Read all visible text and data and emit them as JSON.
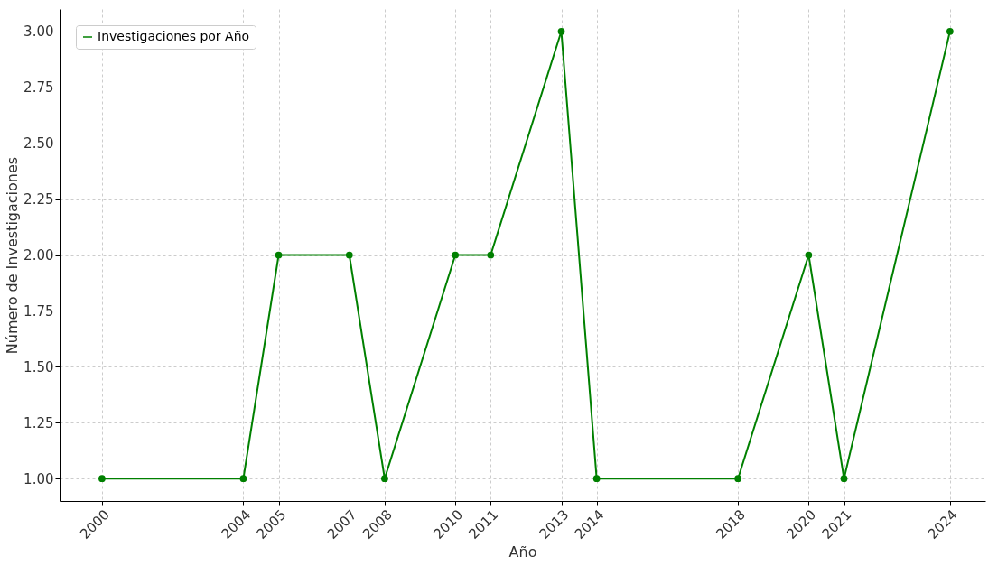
{
  "chart_data": {
    "type": "line",
    "xlabel": "Año",
    "ylabel": "Número de Investigaciones",
    "x": [
      2000,
      2004,
      2005,
      2007,
      2008,
      2010,
      2011,
      2013,
      2014,
      2018,
      2020,
      2021,
      2024
    ],
    "series": [
      {
        "name": "Investigaciones por Año",
        "color": "#008000",
        "values": [
          1,
          1,
          2,
          2,
          1,
          2,
          2,
          3,
          1,
          1,
          2,
          1,
          3
        ]
      }
    ],
    "xlim": [
      1998.8,
      2025
    ],
    "ylim": [
      0.9,
      3.1
    ],
    "xticks": [
      2000,
      2004,
      2005,
      2007,
      2008,
      2010,
      2011,
      2013,
      2014,
      2018,
      2020,
      2021,
      2024
    ],
    "yticks": [
      {
        "value": 1,
        "label": "1.00"
      },
      {
        "value": 1.25,
        "label": "1.25"
      },
      {
        "value": 1.5,
        "label": "1.50"
      },
      {
        "value": 1.75,
        "label": "1.75"
      },
      {
        "value": 2,
        "label": "2.00"
      },
      {
        "value": 2.25,
        "label": "2.25"
      },
      {
        "value": 2.5,
        "label": "2.50"
      },
      {
        "value": 2.75,
        "label": "2.75"
      },
      {
        "value": 3,
        "label": "3.00"
      }
    ],
    "grid": true,
    "legend": "top left",
    "marker": "circle",
    "line_style": "solid"
  }
}
